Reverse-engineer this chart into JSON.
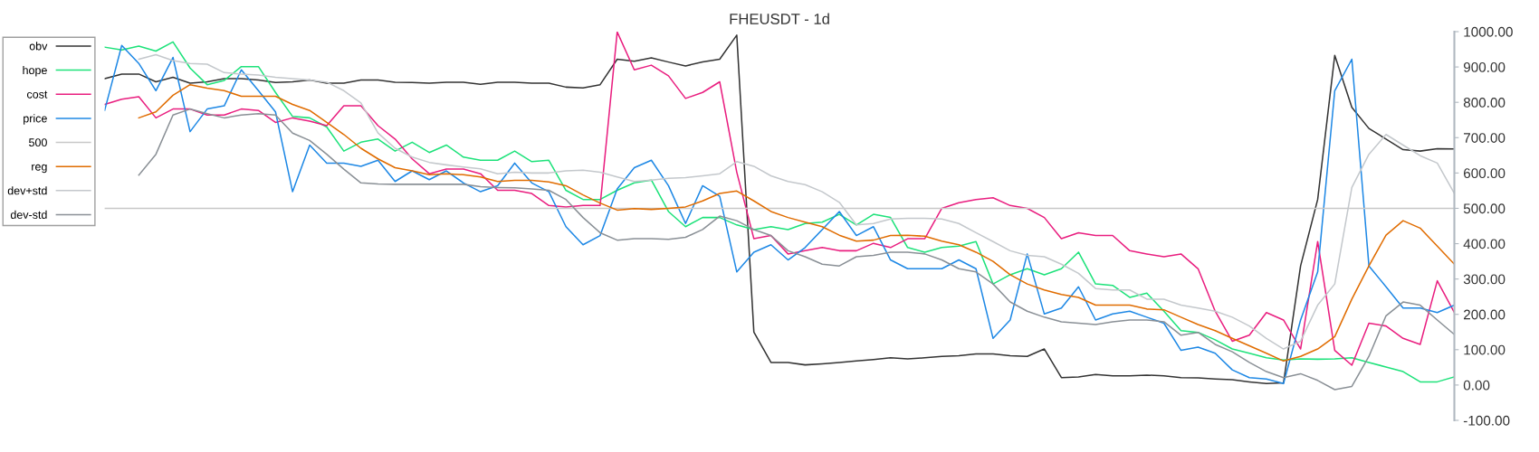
{
  "chart_data": {
    "type": "line",
    "title": "FHEUSDT - 1d",
    "categories": [
      null,
      null,
      null,
      null,
      null,
      null,
      null,
      null,
      null,
      null,
      null,
      null,
      null,
      null,
      null,
      null,
      null,
      null,
      null,
      null,
      null,
      null,
      null,
      null,
      null,
      null,
      null,
      null,
      null,
      null,
      null,
      null,
      null,
      null,
      null,
      null,
      null,
      null,
      null,
      null,
      null,
      null,
      null,
      null,
      null,
      null,
      null,
      null,
      null,
      null,
      null,
      null,
      null,
      null,
      null,
      null,
      null,
      null,
      null,
      null,
      null,
      null,
      null,
      null,
      null,
      null,
      null,
      null,
      null,
      null,
      null,
      null,
      null,
      null,
      null,
      null,
      null,
      null,
      null,
      null
    ],
    "series": [
      {
        "name": "obv",
        "color": "#333333",
        "values": [
          867,
          880,
          880,
          858,
          871,
          854,
          858,
          867,
          867,
          863,
          856,
          858,
          863,
          854,
          854,
          863,
          863,
          857,
          856,
          854,
          857,
          857,
          851,
          857,
          857,
          854,
          854,
          843,
          841,
          850,
          922,
          916,
          926,
          914,
          903,
          914,
          922,
          990,
          150,
          64,
          64,
          57,
          60,
          64,
          68,
          72,
          77,
          74,
          77,
          81,
          83,
          88,
          88,
          83,
          81,
          102,
          21,
          23,
          30,
          26,
          26,
          28,
          26,
          21,
          20,
          17,
          15,
          9,
          4,
          6,
          337,
          525,
          933,
          786,
          726,
          696,
          666,
          662,
          669,
          668
        ]
      },
      {
        "name": "hope",
        "color": "#1de27a",
        "values": [
          956,
          948,
          959,
          945,
          971,
          897,
          850,
          862,
          901,
          901,
          828,
          760,
          756,
          730,
          662,
          687,
          696,
          662,
          687,
          658,
          679,
          645,
          636,
          636,
          662,
          632,
          636,
          551,
          525,
          525,
          551,
          572,
          580,
          491,
          448,
          474,
          474,
          453,
          440,
          448,
          440,
          457,
          461,
          483,
          453,
          483,
          474,
          389,
          376,
          389,
          393,
          406,
          286,
          312,
          329,
          312,
          329,
          376,
          286,
          282,
          248,
          260,
          209,
          154,
          149,
          128,
          102,
          90,
          77,
          71,
          74,
          73,
          74,
          77,
          64,
          51,
          38,
          9,
          9,
          23
        ]
      },
      {
        "name": "cost",
        "color": "#e91e7f",
        "values": [
          794,
          809,
          816,
          756,
          781,
          781,
          764,
          764,
          781,
          777,
          743,
          756,
          747,
          734,
          790,
          790,
          734,
          696,
          640,
          598,
          611,
          611,
          598,
          551,
          551,
          542,
          508,
          504,
          508,
          508,
          999,
          892,
          905,
          875,
          811,
          828,
          858,
          602,
          414,
          423,
          371,
          380,
          389,
          380,
          380,
          401,
          389,
          414,
          414,
          500,
          516,
          525,
          530,
          508,
          500,
          474,
          414,
          431,
          423,
          423,
          380,
          371,
          363,
          371,
          329,
          209,
          124,
          141,
          205,
          184,
          102,
          406,
          98,
          56,
          175,
          167,
          132,
          115,
          295,
          205
        ]
      },
      {
        "name": "price",
        "color": "#1e88e5",
        "values": [
          777,
          961,
          910,
          833,
          927,
          717,
          781,
          790,
          892,
          833,
          773,
          547,
          679,
          628,
          628,
          619,
          636,
          576,
          606,
          581,
          606,
          572,
          547,
          564,
          628,
          572,
          547,
          448,
          397,
          423,
          555,
          615,
          636,
          564,
          457,
          564,
          534,
          320,
          376,
          397,
          354,
          389,
          440,
          491,
          423,
          448,
          354,
          329,
          329,
          329,
          354,
          329,
          132,
          184,
          371,
          201,
          218,
          278,
          184,
          201,
          209,
          192,
          175,
          98,
          107,
          90,
          43,
          21,
          17,
          4,
          184,
          320,
          833,
          922,
          337,
          278,
          218,
          218,
          205,
          226
        ]
      },
      {
        "name": "500",
        "color": "#c8c8c8",
        "values": [
          500,
          500,
          500,
          500,
          500,
          500,
          500,
          500,
          500,
          500,
          500,
          500,
          500,
          500,
          500,
          500,
          500,
          500,
          500,
          500,
          500,
          500,
          500,
          500,
          500,
          500,
          500,
          500,
          500,
          500,
          500,
          500,
          500,
          500,
          500,
          500,
          500,
          500,
          500,
          500,
          500,
          500,
          500,
          500,
          500,
          500,
          500,
          500,
          500,
          500,
          500,
          500,
          500,
          500,
          500,
          500,
          500,
          500,
          500,
          500,
          500,
          500,
          500,
          500,
          500,
          500,
          500,
          500,
          500,
          500,
          500,
          500,
          500,
          500,
          500,
          500,
          500,
          500,
          500,
          500
        ]
      },
      {
        "name": "reg",
        "color": "#e06c00",
        "values": [
          null,
          null,
          756,
          773,
          820,
          850,
          840,
          833,
          817,
          817,
          817,
          794,
          777,
          743,
          709,
          670,
          640,
          615,
          606,
          595,
          598,
          595,
          589,
          576,
          579,
          579,
          575,
          564,
          538,
          515,
          495,
          499,
          497,
          500,
          504,
          521,
          542,
          549,
          521,
          491,
          474,
          461,
          448,
          424,
          407,
          410,
          423,
          424,
          421,
          407,
          397,
          376,
          350,
          312,
          286,
          269,
          256,
          248,
          226,
          226,
          226,
          215,
          213,
          192,
          171,
          154,
          132,
          111,
          90,
          68,
          81,
          102,
          137,
          243,
          337,
          424,
          465,
          444,
          393,
          342
        ]
      },
      {
        "name": "dev+std",
        "color": "#c4c8cc",
        "values": [
          null,
          null,
          922,
          935,
          918,
          910,
          908,
          884,
          880,
          877,
          871,
          867,
          863,
          857,
          833,
          798,
          713,
          670,
          645,
          630,
          623,
          617,
          612,
          598,
          602,
          600,
          600,
          606,
          608,
          602,
          589,
          576,
          580,
          585,
          587,
          592,
          598,
          632,
          619,
          592,
          576,
          567,
          547,
          517,
          453,
          457,
          470,
          472,
          472,
          470,
          457,
          431,
          406,
          380,
          367,
          363,
          342,
          316,
          273,
          269,
          269,
          243,
          243,
          226,
          218,
          209,
          192,
          167,
          132,
          102,
          124,
          226,
          286,
          559,
          653,
          709,
          679,
          649,
          628,
          542
        ]
      },
      {
        "name": "dev-std",
        "color": "#8a9096",
        "values": [
          null,
          null,
          594,
          653,
          764,
          781,
          768,
          756,
          764,
          768,
          764,
          713,
          692,
          653,
          611,
          572,
          569,
          568,
          568,
          568,
          568,
          568,
          561,
          559,
          558,
          555,
          551,
          525,
          474,
          431,
          410,
          414,
          414,
          412,
          418,
          440,
          478,
          465,
          440,
          423,
          380,
          363,
          342,
          337,
          363,
          367,
          376,
          376,
          371,
          354,
          329,
          320,
          286,
          235,
          209,
          192,
          179,
          175,
          171,
          179,
          184,
          184,
          179,
          141,
          149,
          115,
          94,
          64,
          38,
          21,
          32,
          13,
          -13,
          -4,
          81,
          196,
          235,
          226,
          184,
          143
        ]
      }
    ],
    "ylim": [
      -100,
      1000
    ],
    "yticks": [
      {
        "value": -100,
        "label": "-100.00"
      },
      {
        "value": 0,
        "label": "0.00"
      },
      {
        "value": 100,
        "label": "100.00"
      },
      {
        "value": 200,
        "label": "200.00"
      },
      {
        "value": 300,
        "label": "300.00"
      },
      {
        "value": 400,
        "label": "400.00"
      },
      {
        "value": 500,
        "label": "500.00"
      },
      {
        "value": 600,
        "label": "600.00"
      },
      {
        "value": 700,
        "label": "700.00"
      },
      {
        "value": 800,
        "label": "800.00"
      },
      {
        "value": 900,
        "label": "900.00"
      },
      {
        "value": 1000,
        "label": "1000.00"
      }
    ],
    "tick_labels": "y",
    "grid": false,
    "legend": "left",
    "marker": "none",
    "line_style": "solid"
  }
}
